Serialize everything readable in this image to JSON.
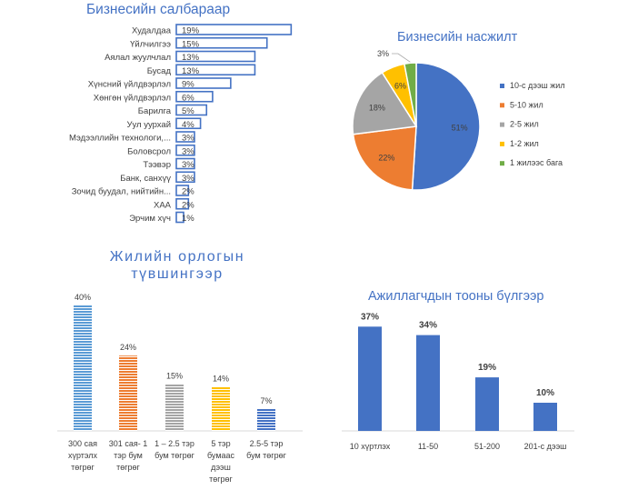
{
  "chart_data": [
    {
      "type": "bar",
      "orientation": "horizontal",
      "title": "Бизнесийн салбараар",
      "categories": [
        "Худалдаа",
        "Үйлчилгээ",
        "Аялал жуулчлал",
        "Бусад",
        "Хүнсний үйлдвэрлэл",
        "Хөнгөн үйлдвэрлэл",
        "Барилга",
        "Уул уурхай",
        "Мэдээллийн технологи,...",
        "Боловсрол",
        "Тээвэр",
        "Банк, санхүү",
        "Зочид буудал, нийтийн...",
        "ХАА",
        "Эрчим хүч"
      ],
      "values": [
        19,
        15,
        13,
        13,
        9,
        6,
        5,
        4,
        3,
        3,
        3,
        3,
        2,
        2,
        1
      ],
      "data_labels": [
        "19%",
        "15%",
        "13%",
        "13%",
        "9%",
        "6%",
        "5%",
        "4%",
        "3%",
        "3%",
        "3%",
        "3%",
        "2%",
        "2%",
        "1%"
      ],
      "unit": "%",
      "color": "#4472c4",
      "style": "outline"
    },
    {
      "type": "pie",
      "title": "Бизнесийн насжилт",
      "labels": [
        "10-с дээш жил",
        "5-10 жил",
        "2-5 жил",
        "1-2 жил",
        "1 жилээс бага"
      ],
      "values": [
        51,
        22,
        18,
        6,
        3
      ],
      "data_labels": [
        "51%",
        "22%",
        "18%",
        "6%",
        "3%"
      ],
      "colors": [
        "#4472c4",
        "#ed7d31",
        "#a5a5a5",
        "#ffc000",
        "#70ad47"
      ],
      "legend": "right"
    },
    {
      "type": "bar",
      "title": "Жилийн орлогын түвшингээр",
      "title_lines": [
        "Жилийн орлогын",
        "түвшингээр"
      ],
      "categories": [
        "300 сая хүртэлх төгрөг",
        "301 сая- 1 тэр бум төгрөг",
        "1 – 2.5 тэр бум төгрөг",
        "5 тэр бумаас дээш төгрөг",
        "2.5-5 тэр бум төгрөг"
      ],
      "category_lines": [
        [
          "300 сая",
          "хүртэлх",
          "төгрөг"
        ],
        [
          "301 сая- 1",
          "тэр бум",
          "төгрөг"
        ],
        [
          "1 – 2.5 тэр",
          "бум төгрөг"
        ],
        [
          "5 тэр",
          "бумаас",
          "дээш",
          "төгрөг"
        ],
        [
          "2.5-5 тэр",
          "бум төгрөг"
        ]
      ],
      "values": [
        40,
        24,
        15,
        14,
        7
      ],
      "data_labels": [
        "40%",
        "24%",
        "15%",
        "14%",
        "7%"
      ],
      "colors": [
        "#5b9bd5",
        "#ed7d31",
        "#a5a5a5",
        "#ffc000",
        "#4472c4"
      ],
      "pattern": "horizontal-stripes"
    },
    {
      "type": "bar",
      "title": "Ажиллагчдын тооны бүлгээр",
      "categories": [
        "10 хүртлэх",
        "11-50",
        "51-200",
        "201-с дээш"
      ],
      "values": [
        37,
        34,
        19,
        10
      ],
      "data_labels": [
        "37%",
        "34%",
        "19%",
        "10%"
      ],
      "color": "#4472c4"
    }
  ]
}
